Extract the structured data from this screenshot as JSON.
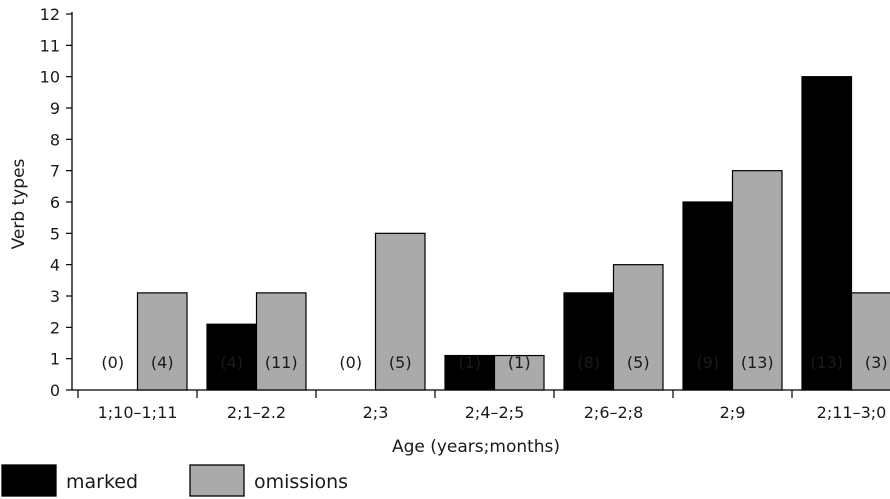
{
  "chart_data": {
    "type": "bar",
    "title": "",
    "xlabel": "Age (years;months)",
    "ylabel": "Verb types",
    "ylim": [
      0,
      12
    ],
    "yticks": [
      0,
      1,
      2,
      3,
      4,
      5,
      6,
      7,
      8,
      9,
      10,
      11,
      12
    ],
    "categories": [
      "1;10–1;11",
      "2;1–2.2",
      "2;3",
      "2;4–2;5",
      "2;6–2;8",
      "2;9",
      "2;11–3;0"
    ],
    "series": [
      {
        "name": "marked",
        "color": "#000000",
        "values": [
          0,
          2.1,
          0,
          1.1,
          3.1,
          6,
          10
        ],
        "annotations": [
          "(0)",
          "(4)",
          "(0)",
          "(1)",
          "(8)",
          "(9)",
          "(13)"
        ]
      },
      {
        "name": "omissions",
        "color": "#aaaaaa",
        "values": [
          3.1,
          3.1,
          5,
          1.1,
          4,
          7,
          3.1
        ],
        "annotations": [
          "(4)",
          "(11)",
          "(5)",
          "(1)",
          "(5)",
          "(13)",
          "(3)"
        ]
      }
    ],
    "grid": false,
    "legend": "bottom-left"
  }
}
